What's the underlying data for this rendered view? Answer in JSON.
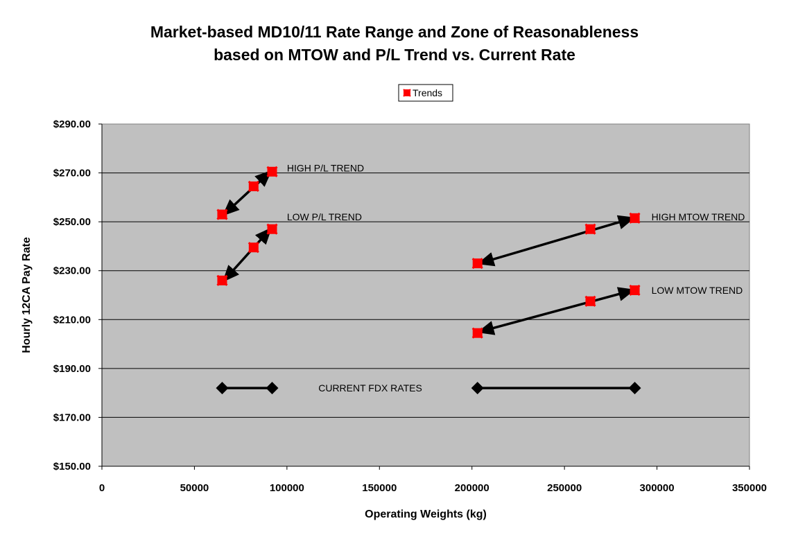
{
  "chart_data": {
    "type": "scatter",
    "title_lines": [
      "Market-based MD10/11 Rate Range and Zone of Reasonableness",
      "based on MTOW and P/L Trend vs. Current Rate"
    ],
    "xlabel": "Operating Weights (kg)",
    "ylabel": "Hourly 12CA Pay Rate",
    "xlim": [
      0,
      350000
    ],
    "ylim": [
      150,
      290
    ],
    "x_ticks": [
      "0",
      "50000",
      "100000",
      "150000",
      "200000",
      "250000",
      "300000",
      "350000"
    ],
    "x_tick_values": [
      0,
      50000,
      100000,
      150000,
      200000,
      250000,
      300000,
      350000
    ],
    "y_ticks": [
      "$150.00",
      "$170.00",
      "$190.00",
      "$210.00",
      "$230.00",
      "$250.00",
      "$270.00",
      "$290.00"
    ],
    "y_tick_values": [
      150,
      170,
      190,
      210,
      230,
      250,
      270,
      290
    ],
    "grid": "horizontal",
    "plot_background": "#c0c0c0",
    "legend": {
      "position": "top-center",
      "entries": [
        "Trends"
      ]
    },
    "series": [
      {
        "name": "Trends",
        "color": "#ff0000",
        "marker": "square-x",
        "points": [
          {
            "x": 65000,
            "y": 253
          },
          {
            "x": 82000,
            "y": 264.5
          },
          {
            "x": 92000,
            "y": 270.5
          },
          {
            "x": 65000,
            "y": 226
          },
          {
            "x": 82000,
            "y": 239.5
          },
          {
            "x": 92000,
            "y": 247
          },
          {
            "x": 203000,
            "y": 233
          },
          {
            "x": 264000,
            "y": 247
          },
          {
            "x": 288000,
            "y": 251.5
          },
          {
            "x": 203000,
            "y": 204.5
          },
          {
            "x": 264000,
            "y": 217.5
          },
          {
            "x": 288000,
            "y": 222
          }
        ]
      }
    ],
    "current_rates": {
      "marker": "diamond",
      "color": "#000000",
      "segments": [
        {
          "x1": 65000,
          "x2": 92000,
          "y": 182
        },
        {
          "x1": 203000,
          "x2": 288000,
          "y": 182
        }
      ]
    },
    "trend_arrows": [
      {
        "x1": 66000,
        "y1": 253,
        "x2": 91000,
        "y2": 270.5
      },
      {
        "x1": 66000,
        "y1": 226,
        "x2": 91000,
        "y2": 247
      },
      {
        "x1": 204000,
        "y1": 233,
        "x2": 287000,
        "y2": 251.5
      },
      {
        "x1": 204000,
        "y1": 205,
        "x2": 287000,
        "y2": 222
      }
    ],
    "annotations": [
      {
        "text": "HIGH P/L TREND",
        "x": 100000,
        "y": 272
      },
      {
        "text": "LOW P/L TREND",
        "x": 100000,
        "y": 252
      },
      {
        "text": "HIGH  MTOW TREND",
        "x": 297000,
        "y": 252
      },
      {
        "text": "LOW  MTOW TREND",
        "x": 297000,
        "y": 222
      },
      {
        "text": "CURRENT FDX  RATES",
        "x": 117000,
        "y": 182
      }
    ]
  }
}
